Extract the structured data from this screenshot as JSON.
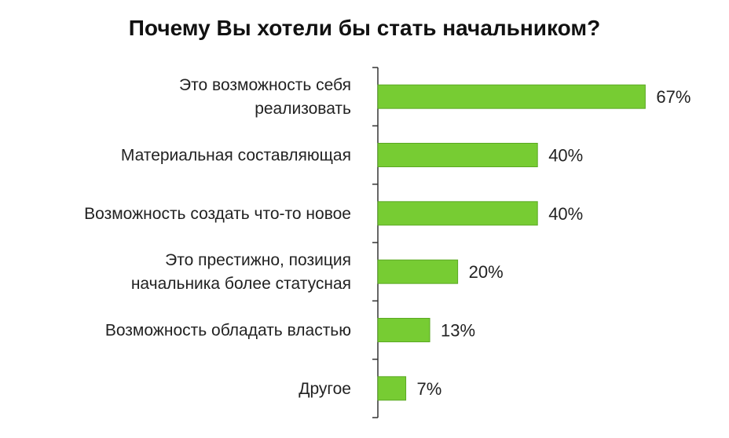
{
  "chart_data": {
    "type": "bar",
    "orientation": "horizontal",
    "title": "Почему Вы хотели бы стать начальником?",
    "categories": [
      [
        "Это возможность себя",
        "реализовать"
      ],
      [
        "Материальная  составляющая"
      ],
      [
        "Возможность  создать  что-то  новое"
      ],
      [
        "Это  престижно,  позиция",
        "начальника  более  статусная"
      ],
      [
        "Возможность  обладать  властью"
      ],
      [
        "Другое"
      ]
    ],
    "values": [
      67,
      40,
      40,
      20,
      13,
      7
    ],
    "value_labels": [
      "67%",
      "40%",
      "40%",
      "20%",
      "13%",
      "7%"
    ],
    "unit": "%",
    "xlim": [
      0,
      100
    ],
    "bar_color": "#77cc33",
    "bar_border_color": "#5aa822",
    "axis_color": "#333333",
    "grid": false,
    "legend": "none"
  }
}
